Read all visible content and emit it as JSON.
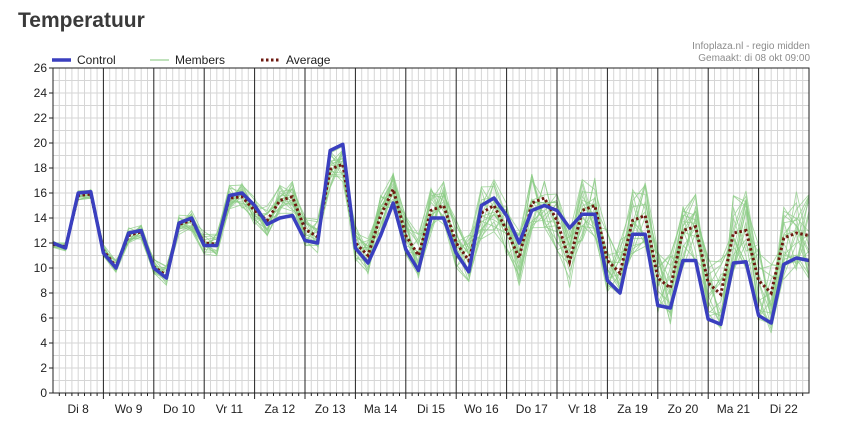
{
  "page": {
    "title": "Temperatuur"
  },
  "source": {
    "line1": "Infoplaza.nl - regio midden",
    "line2": "Gemaakt: di 08 okt 09:00"
  },
  "colors": {
    "control": "#3a3fbf",
    "members": "#7ec47a",
    "average": "#6e1a10",
    "grid_major": "#222222",
    "grid_minor": "#d6d6d6"
  },
  "chart_data": {
    "type": "line",
    "ylim": [
      0,
      26
    ],
    "yticks": [
      0,
      2,
      4,
      6,
      8,
      10,
      12,
      14,
      16,
      18,
      20,
      22,
      24,
      26
    ],
    "xlim": [
      0,
      30
    ],
    "x": [
      0,
      0.5,
      1,
      1.5,
      2,
      2.5,
      3,
      3.5,
      4,
      4.5,
      5,
      5.5,
      6,
      6.5,
      7,
      7.5,
      8,
      8.5,
      9,
      9.5,
      10,
      10.5,
      11,
      11.5,
      12,
      12.5,
      13,
      13.5,
      14,
      14.5,
      15,
      15.5,
      16,
      16.5,
      17,
      17.5,
      18,
      18.5,
      19,
      19.5,
      20,
      20.5,
      21,
      21.5,
      22,
      22.5,
      23,
      23.5,
      24,
      24.5,
      25,
      25.5,
      26,
      26.5,
      27,
      27.5,
      28,
      28.5,
      29,
      29.5,
      30
    ],
    "day_labels": [
      {
        "x": 1,
        "label": "Di 8"
      },
      {
        "x": 3,
        "label": "Wo 9"
      },
      {
        "x": 5,
        "label": "Do 10"
      },
      {
        "x": 7,
        "label": "Vr 11"
      },
      {
        "x": 9,
        "label": "Za 12"
      },
      {
        "x": 11,
        "label": "Zo 13"
      },
      {
        "x": 13,
        "label": "Ma 14"
      },
      {
        "x": 15,
        "label": "Di 15"
      },
      {
        "x": 17,
        "label": "Wo 16"
      },
      {
        "x": 19,
        "label": "Do 17"
      },
      {
        "x": 21,
        "label": "Vr 18"
      },
      {
        "x": 23,
        "label": "Za 19"
      },
      {
        "x": 25,
        "label": "Zo 20"
      },
      {
        "x": 27,
        "label": "Ma 21"
      },
      {
        "x": 29,
        "label": "Di 22"
      }
    ],
    "day_boundaries": [
      2,
      4,
      6,
      8,
      10,
      12,
      14,
      16,
      18,
      20,
      22,
      24,
      26,
      28,
      30
    ],
    "legend": {
      "position": "top-left",
      "control": "Control",
      "members": "Members",
      "average": "Average"
    },
    "series": [
      {
        "name": "Control",
        "values": [
          12.0,
          11.6,
          16.0,
          16.1,
          11.2,
          10.0,
          12.8,
          13.0,
          10.0,
          9.2,
          13.6,
          14.0,
          11.8,
          11.8,
          15.8,
          16.0,
          15.0,
          13.5,
          14.0,
          14.2,
          12.2,
          12.0,
          19.4,
          19.9,
          11.6,
          10.4,
          12.6,
          15.2,
          11.5,
          9.8,
          14.0,
          14.0,
          11.2,
          9.7,
          15.0,
          15.6,
          14.2,
          12.0,
          14.6,
          15.0,
          14.6,
          13.2,
          14.3,
          14.3,
          9.0,
          8.0,
          12.7,
          12.7,
          7.0,
          6.8,
          10.6,
          10.6,
          5.9,
          5.5,
          10.4,
          10.5,
          6.2,
          5.6,
          10.3,
          10.8,
          10.6
        ]
      },
      {
        "name": "Average",
        "values": [
          11.9,
          11.7,
          15.8,
          15.9,
          11.4,
          10.1,
          12.6,
          12.9,
          10.1,
          9.4,
          13.5,
          13.8,
          12.0,
          11.9,
          15.6,
          15.7,
          14.6,
          13.8,
          15.4,
          15.7,
          13.1,
          12.5,
          17.9,
          18.3,
          12.0,
          11.0,
          14.2,
          16.3,
          12.6,
          11.0,
          14.6,
          15.0,
          12.0,
          10.6,
          14.4,
          15.0,
          13.0,
          10.8,
          15.2,
          15.6,
          13.8,
          10.5,
          14.6,
          15.0,
          10.6,
          9.6,
          13.8,
          14.2,
          9.2,
          8.4,
          13.0,
          13.3,
          8.8,
          7.9,
          12.8,
          13.0,
          9.0,
          8.0,
          12.4,
          12.8,
          12.6
        ]
      }
    ]
  }
}
